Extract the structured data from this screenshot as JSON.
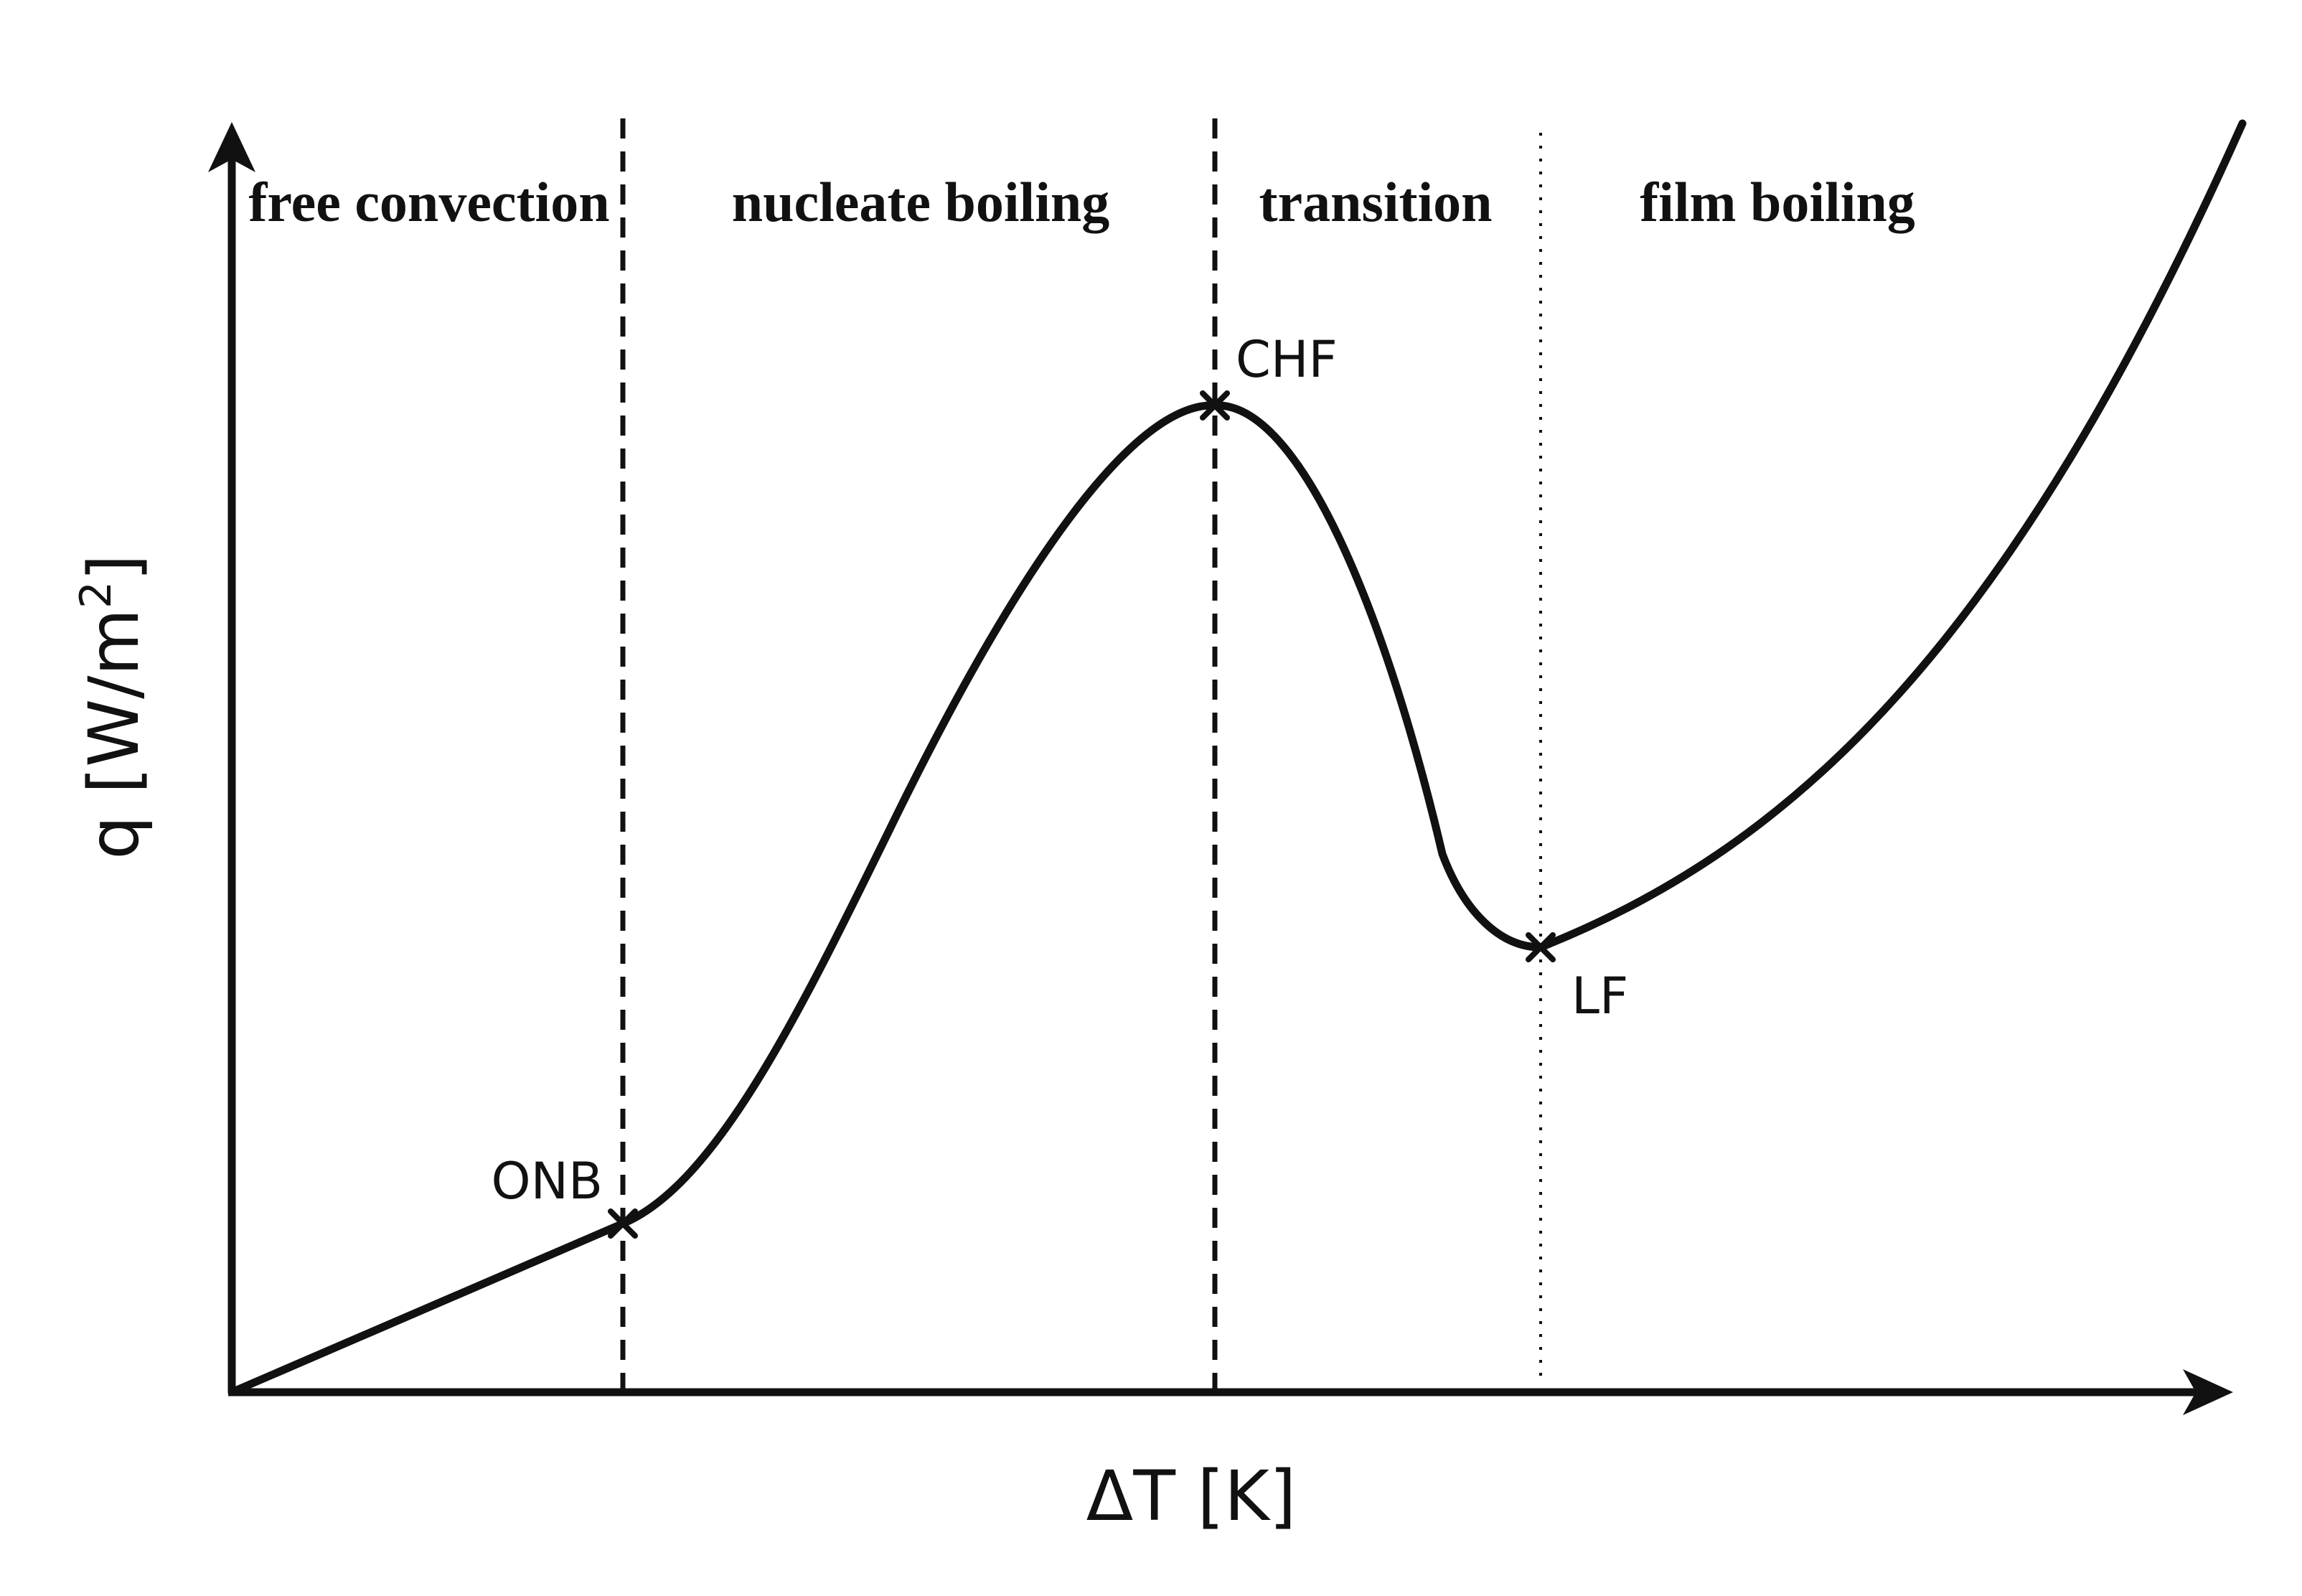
{
  "regions": {
    "free_convection": "free convection",
    "nucleate_boiling": "nucleate boiling",
    "transition": "transition",
    "film_boiling": "film boiling"
  },
  "points": {
    "onb": "ONB",
    "chf": "CHF",
    "lf": "LF"
  },
  "axes": {
    "x_label": "ΔT [K]",
    "y_label_main": "q [W/m",
    "y_label_sup": "2",
    "y_label_end": "]"
  },
  "colors": {
    "ink": "#111111",
    "background": "#ffffff"
  }
}
